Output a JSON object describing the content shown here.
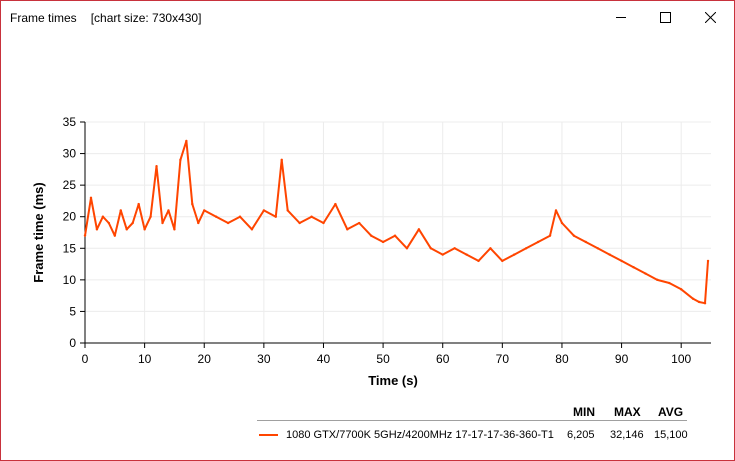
{
  "window": {
    "title": "Frame times",
    "subtitle": "[chart size: 730x430]",
    "minimize_icon": "minimize-icon",
    "maximize_icon": "maximize-icon",
    "close_icon": "close-icon"
  },
  "legend": {
    "headers": {
      "min": "MIN",
      "max": "MAX",
      "avg": "AVG"
    },
    "series_name": "1080 GTX/7700K 5GHz/4200MHz 17-17-17-36-360-T1",
    "min": "6,205",
    "max": "32,146",
    "avg": "15,100"
  },
  "chart_data": {
    "type": "line",
    "xlabel": "Time (s)",
    "ylabel": "Frame time (ms)",
    "xlim": [
      0,
      105
    ],
    "ylim": [
      0,
      35
    ],
    "x_ticks": [
      0,
      10,
      20,
      30,
      40,
      50,
      60,
      70,
      80,
      90,
      100
    ],
    "y_ticks": [
      0,
      5,
      10,
      15,
      20,
      25,
      30,
      35
    ],
    "grid": true,
    "color": "#ff4500",
    "series": [
      {
        "name": "1080 GTX/7700K 5GHz/4200MHz 17-17-17-36-360-T1",
        "x": [
          0,
          1,
          2,
          3,
          4,
          5,
          6,
          7,
          8,
          9,
          10,
          11,
          12,
          13,
          14,
          15,
          16,
          17,
          18,
          19,
          20,
          22,
          24,
          26,
          28,
          30,
          32,
          33,
          34,
          36,
          38,
          40,
          42,
          44,
          46,
          48,
          50,
          52,
          54,
          56,
          58,
          60,
          62,
          64,
          66,
          68,
          70,
          72,
          74,
          76,
          78,
          79,
          80,
          82,
          84,
          86,
          88,
          90,
          92,
          94,
          96,
          98,
          100,
          102,
          103,
          104,
          104.5
        ],
        "y": [
          17,
          23,
          18,
          20,
          19,
          17,
          21,
          18,
          19,
          22,
          18,
          20,
          28,
          19,
          21,
          18,
          29,
          32,
          22,
          19,
          21,
          20,
          19,
          20,
          18,
          21,
          20,
          29,
          21,
          19,
          20,
          19,
          22,
          18,
          19,
          17,
          16,
          17,
          15,
          18,
          15,
          14,
          15,
          14,
          13,
          15,
          13,
          14,
          15,
          16,
          17,
          21,
          19,
          17,
          16,
          15,
          14,
          13,
          12,
          11,
          10,
          9.5,
          8.5,
          7,
          6.5,
          6.3,
          13
        ]
      }
    ]
  }
}
